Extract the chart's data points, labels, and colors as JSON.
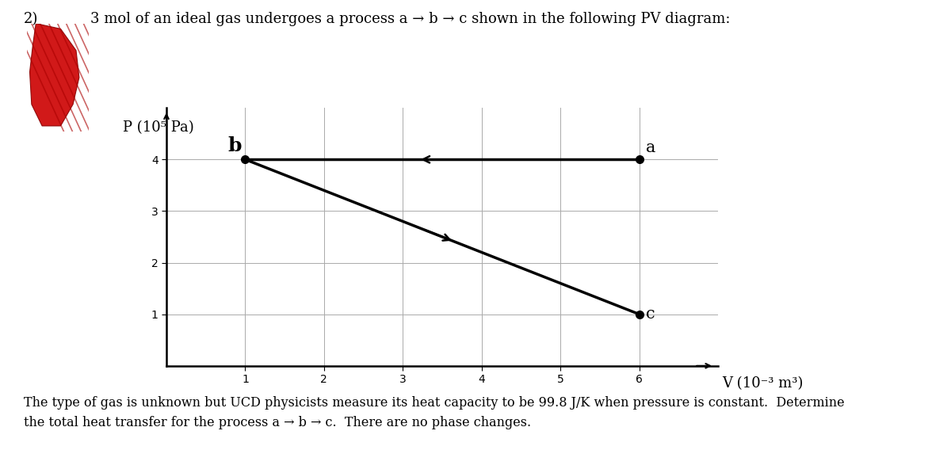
{
  "title_line": "3 mol of an ideal gas undergoes a process a → b → c shown in the following PV diagram:",
  "problem_number": "2)",
  "ylabel": "P (10⁵ Pa)",
  "xlabel": "V (10⁻³ m³)",
  "xlim": [
    0,
    7
  ],
  "ylim": [
    0,
    5
  ],
  "xticks": [
    1,
    2,
    3,
    4,
    5,
    6
  ],
  "yticks": [
    1,
    2,
    3,
    4
  ],
  "point_a": [
    6,
    4
  ],
  "point_b": [
    1,
    4
  ],
  "point_c": [
    6,
    1
  ],
  "line_color": "black",
  "point_color": "black",
  "line_width": 2.5,
  "point_size": 7,
  "label_a_fontsize": 15,
  "label_b_fontsize": 18,
  "label_c_fontsize": 15,
  "tick_fontsize": 12,
  "axis_label_fontsize": 13,
  "title_fontsize": 13,
  "footer_text_line1": "The type of gas is unknown but UCD physicists measure its heat capacity to be 99.8 J/K when pressure is constant.  Determine",
  "footer_text_line2": "the total heat transfer for the process a → b → c.  There are no phase changes.",
  "grid_color": "#aaaaaa",
  "bg_color": "white"
}
